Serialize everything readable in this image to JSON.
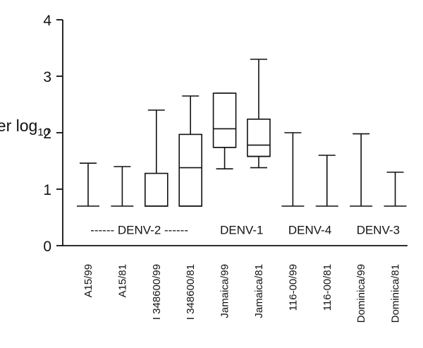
{
  "chart_data": {
    "type": "box",
    "title": "",
    "ylabel": "Titer log",
    "ylabel_subscript": "10",
    "xlabel": "",
    "ylim": [
      0,
      4
    ],
    "yticks": [
      0,
      1,
      2,
      3,
      4
    ],
    "ytick_labels": [
      "0",
      "1",
      "2",
      "3",
      "4"
    ],
    "grid": false,
    "categories": [
      "A15/99",
      "A15/81",
      "I 348600/99",
      "I 348600/81",
      "Jamaica/99",
      "Jamaica/81",
      "116-00/99",
      "116-00/81",
      "Dominica/99",
      "Dominica/81"
    ],
    "boxes": [
      {
        "category": "A15/99",
        "min": 0.7,
        "q1": 0.7,
        "median": 0.7,
        "q3": 0.7,
        "max": 1.46
      },
      {
        "category": "A15/81",
        "min": 0.7,
        "q1": 0.7,
        "median": 0.7,
        "q3": 0.7,
        "max": 1.4
      },
      {
        "category": "I 348600/99",
        "min": 0.7,
        "q1": 0.7,
        "median": 0.7,
        "q3": 1.28,
        "max": 2.4
      },
      {
        "category": "I 348600/81",
        "min": 0.7,
        "q1": 0.7,
        "median": 1.38,
        "q3": 1.97,
        "max": 2.65
      },
      {
        "category": "Jamaica/99",
        "min": 1.36,
        "q1": 1.74,
        "median": 2.07,
        "q3": 2.7,
        "max": 2.7
      },
      {
        "category": "Jamaica/81",
        "min": 1.38,
        "q1": 1.58,
        "median": 1.78,
        "q3": 2.24,
        "max": 3.3
      },
      {
        "category": "116-00/99",
        "min": 0.7,
        "q1": 0.7,
        "median": 0.7,
        "q3": 0.7,
        "max": 2.0
      },
      {
        "category": "116-00/81",
        "min": 0.7,
        "q1": 0.7,
        "median": 0.7,
        "q3": 0.7,
        "max": 1.6
      },
      {
        "category": "Dominica/99",
        "min": 0.7,
        "q1": 0.7,
        "median": 0.7,
        "q3": 0.7,
        "max": 1.98
      },
      {
        "category": "Dominica/81",
        "min": 0.7,
        "q1": 0.7,
        "median": 0.7,
        "q3": 0.7,
        "max": 1.3
      }
    ],
    "group_annotations": [
      {
        "text": "------ DENV-2 ------",
        "from_category": 0,
        "to_category": 3
      },
      {
        "text": "DENV-1",
        "from_category": 4,
        "to_category": 5
      },
      {
        "text": "DENV-4",
        "from_category": 6,
        "to_category": 7
      },
      {
        "text": "DENV-3",
        "from_category": 8,
        "to_category": 9
      }
    ],
    "group_annotation_y": 0.28
  }
}
